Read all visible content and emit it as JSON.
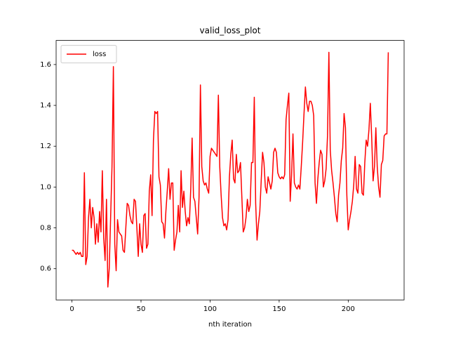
{
  "chart_data": {
    "type": "line",
    "title": "valid_loss_plot",
    "x_label": "nth iteration",
    "x": [
      0,
      1,
      2,
      3,
      4,
      5,
      6,
      7,
      8,
      9,
      10,
      11,
      12,
      13,
      14,
      15,
      16,
      17,
      18,
      19,
      20,
      21,
      22,
      23,
      24,
      25,
      26,
      27,
      28,
      29,
      30,
      31,
      32,
      33,
      34,
      35,
      36,
      37,
      38,
      39,
      40,
      41,
      42,
      43,
      44,
      45,
      46,
      47,
      48,
      49,
      50,
      51,
      52,
      53,
      54,
      55,
      56,
      57,
      58,
      59,
      60,
      61,
      62,
      63,
      64,
      65,
      66,
      67,
      68,
      69,
      70,
      71,
      72,
      73,
      74,
      75,
      76,
      77,
      78,
      79,
      80,
      81,
      82,
      83,
      84,
      85,
      86,
      87,
      88,
      89,
      90,
      91,
      92,
      93,
      94,
      95,
      96,
      97,
      98,
      99,
      100,
      101,
      102,
      103,
      104,
      105,
      106,
      107,
      108,
      109,
      110,
      111,
      112,
      113,
      114,
      115,
      116,
      117,
      118,
      119,
      120,
      121,
      122,
      123,
      124,
      125,
      126,
      127,
      128,
      129,
      130,
      131,
      132,
      133,
      134,
      135,
      136,
      137,
      138,
      139,
      140,
      141,
      142,
      143,
      144,
      145,
      146,
      147,
      148,
      149,
      150,
      151,
      152,
      153,
      154,
      155,
      156,
      157,
      158,
      159,
      160,
      161,
      162,
      163,
      164,
      165,
      166,
      167,
      168,
      169,
      170,
      171,
      172,
      173,
      174,
      175,
      176,
      177,
      178,
      179,
      180,
      181,
      182,
      183,
      184,
      185,
      186,
      187,
      188,
      189,
      190,
      191,
      192,
      193,
      194,
      195,
      196,
      197,
      198,
      199,
      200,
      201,
      202,
      203,
      204,
      205,
      206,
      207,
      208,
      209,
      210,
      211,
      212,
      213,
      214,
      215,
      216,
      217,
      218,
      219,
      220,
      221,
      222,
      223,
      224,
      225,
      226,
      227,
      228,
      229
    ],
    "series": [
      {
        "name": "loss",
        "color": "#ff0000",
        "values": [
          0.69,
          0.69,
          0.68,
          0.67,
          0.68,
          0.67,
          0.68,
          0.66,
          0.66,
          1.07,
          0.62,
          0.66,
          0.85,
          0.94,
          0.8,
          0.9,
          0.85,
          0.72,
          0.82,
          0.73,
          0.88,
          0.78,
          1.08,
          0.75,
          0.64,
          0.94,
          0.51,
          0.6,
          0.85,
          1.1,
          1.59,
          0.72,
          0.59,
          0.84,
          0.78,
          0.77,
          0.76,
          0.69,
          0.68,
          0.8,
          0.92,
          0.91,
          0.86,
          0.83,
          0.82,
          0.94,
          0.93,
          0.8,
          0.66,
          0.82,
          0.72,
          0.68,
          0.86,
          0.87,
          0.7,
          0.72,
          0.98,
          1.06,
          0.86,
          1.23,
          1.37,
          1.36,
          1.37,
          1.05,
          1.01,
          0.83,
          0.82,
          0.75,
          0.88,
          0.98,
          1.09,
          0.94,
          1.02,
          1.02,
          0.69,
          0.74,
          0.78,
          0.91,
          0.78,
          1.08,
          0.9,
          0.98,
          0.88,
          0.81,
          0.85,
          0.82,
          0.99,
          1.24,
          0.95,
          0.93,
          0.85,
          0.77,
          0.95,
          1.5,
          1.1,
          1.03,
          1.01,
          1.02,
          0.99,
          0.97,
          1.15,
          1.19,
          1.18,
          1.17,
          1.16,
          1.15,
          1.45,
          1.1,
          0.96,
          0.85,
          0.81,
          0.82,
          0.79,
          0.84,
          1.05,
          1.16,
          1.23,
          1.04,
          1.02,
          1.16,
          1.07,
          1.08,
          1.12,
          0.95,
          0.78,
          0.8,
          0.85,
          0.94,
          0.88,
          0.91,
          1.12,
          1.12,
          1.44,
          0.92,
          0.74,
          0.82,
          0.88,
          1.03,
          1.17,
          1.12,
          1.0,
          0.97,
          1.05,
          1.02,
          0.99,
          1.03,
          1.17,
          1.19,
          1.17,
          1.07,
          1.05,
          1.04,
          1.05,
          1.04,
          1.06,
          1.33,
          1.4,
          1.46,
          0.93,
          1.06,
          1.26,
          1.02,
          1.0,
          0.99,
          1.01,
          0.99,
          1.1,
          1.22,
          1.36,
          1.49,
          1.41,
          1.37,
          1.42,
          1.42,
          1.4,
          1.35,
          1.02,
          0.92,
          1.04,
          1.12,
          1.18,
          1.16,
          1.0,
          1.03,
          1.09,
          1.25,
          1.66,
          1.18,
          1.08,
          1.02,
          0.95,
          0.87,
          0.83,
          0.96,
          1.02,
          1.13,
          1.19,
          1.36,
          1.29,
          0.96,
          0.79,
          0.84,
          0.88,
          0.93,
          1.01,
          1.15,
          0.99,
          0.97,
          1.11,
          1.1,
          0.97,
          0.96,
          1.12,
          1.23,
          1.2,
          1.28,
          1.41,
          1.24,
          1.03,
          1.1,
          1.29,
          1.1,
          1.0,
          0.95,
          1.11,
          1.13,
          1.25,
          1.26,
          1.26,
          1.66
        ]
      }
    ],
    "xlim": [
      -11.45,
      240.45
    ],
    "xticks": [
      0,
      50,
      100,
      150,
      200
    ],
    "ylim": [
      0.447,
      1.718
    ],
    "yticks": [
      0.6,
      0.8,
      {
        "value": 1,
        "label": "1.0"
      },
      1.2,
      1.4,
      1.6
    ],
    "legend": "upper left",
    "grid": false
  }
}
